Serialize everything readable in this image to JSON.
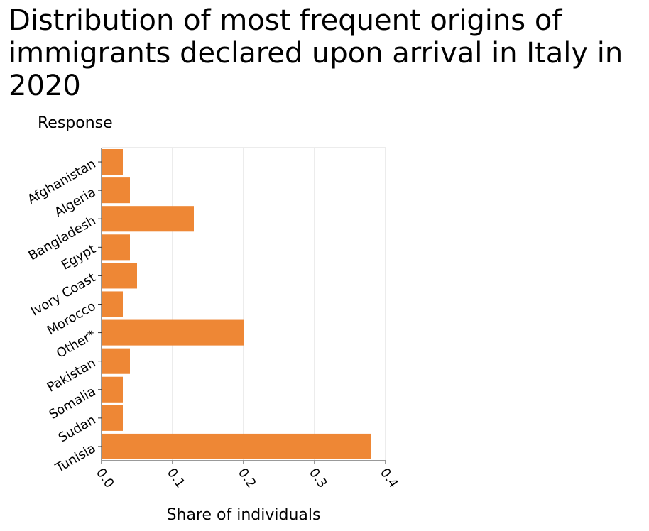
{
  "chart_data": {
    "type": "bar",
    "orientation": "horizontal",
    "title": "Distribution of most frequent origins of immigrants declared upon arrival in Italy in 2020",
    "ylabel": "Response",
    "xlabel": "Share of individuals",
    "categories": [
      "Afghanistan",
      "Algeria",
      "Bangladesh",
      "Egypt",
      "Ivory Coast",
      "Morocco",
      "Other*",
      "Pakistan",
      "Somalia",
      "Sudan",
      "Tunisia"
    ],
    "values": [
      0.03,
      0.04,
      0.13,
      0.04,
      0.05,
      0.03,
      0.2,
      0.04,
      0.03,
      0.03,
      0.38
    ],
    "xlim": [
      0,
      0.4
    ],
    "xticks": [
      "0.0",
      "0.1",
      "0.2",
      "0.3",
      "0.4"
    ],
    "grid": "vertical",
    "bar_color": "#ee8735"
  }
}
